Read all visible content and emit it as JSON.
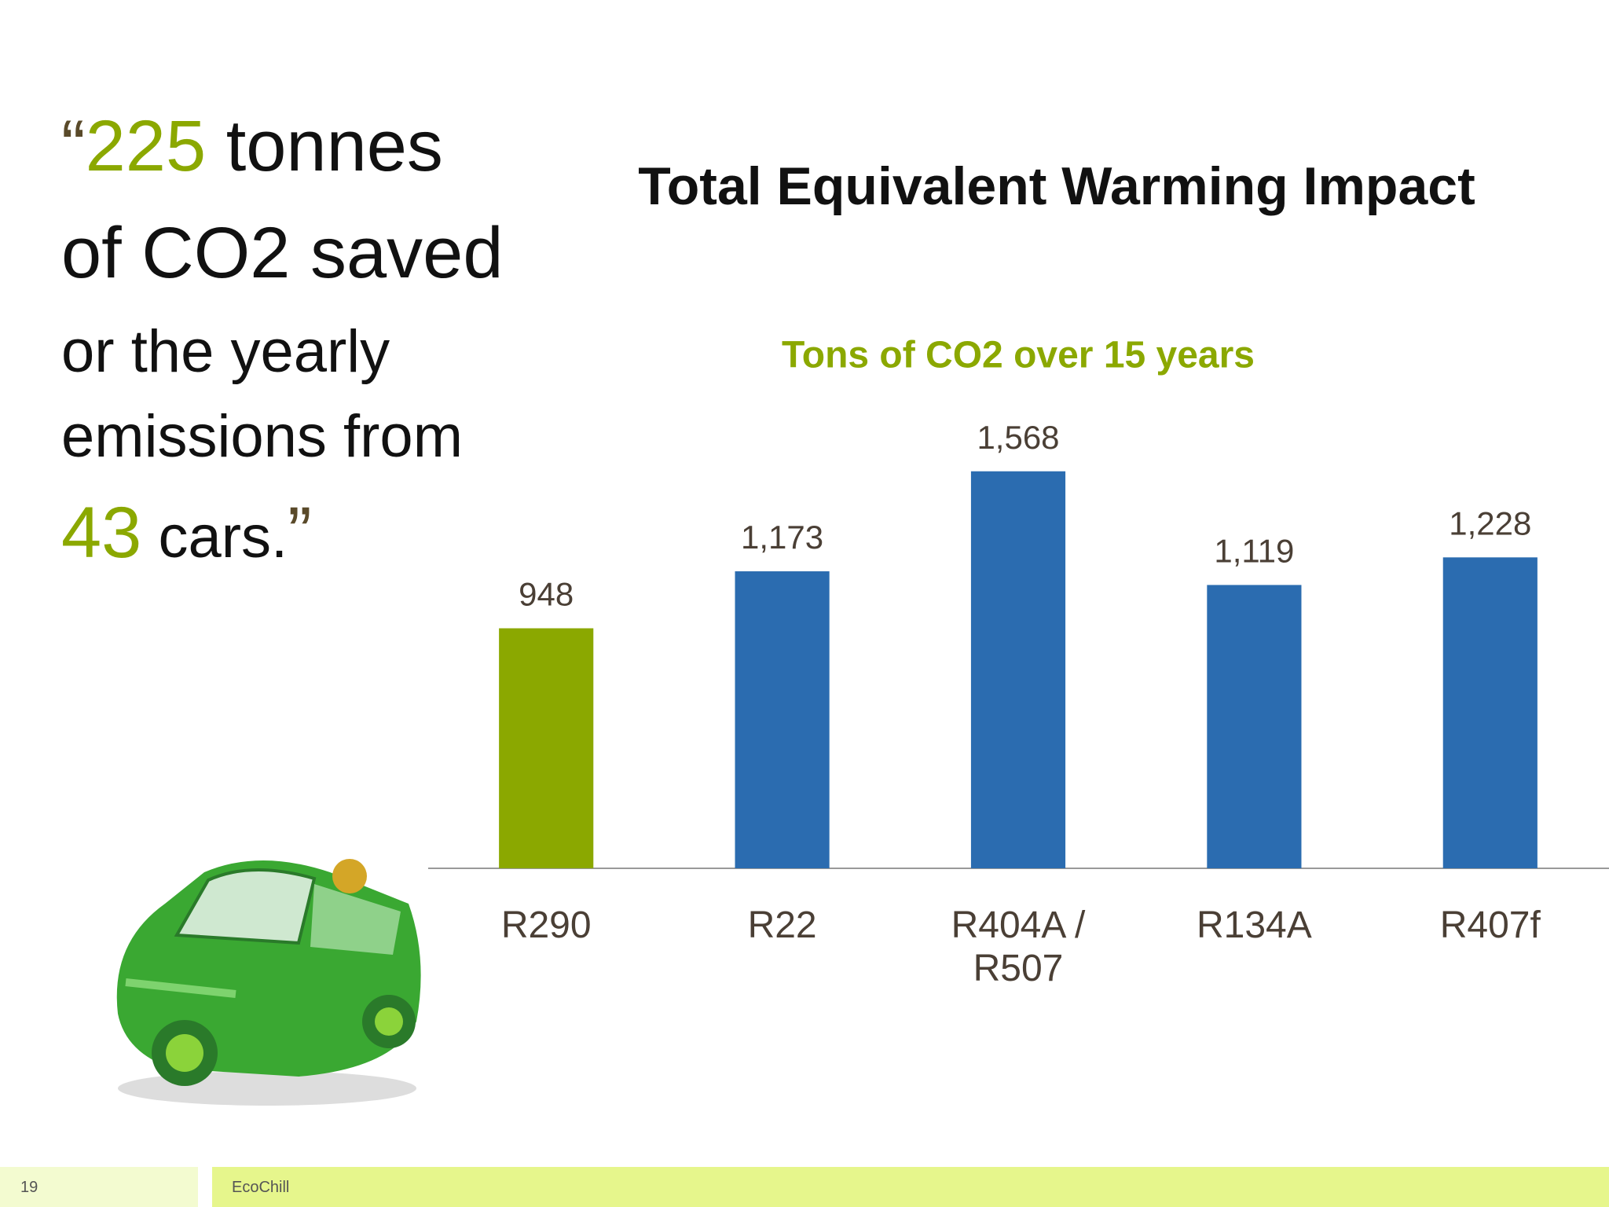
{
  "quote": {
    "lines": [
      [
        "“",
        "225",
        " tonnes"
      ],
      [
        "of CO2 saved"
      ],
      [
        "or the yearly"
      ],
      [
        "emissions from"
      ],
      [
        "43",
        " cars.",
        "”"
      ]
    ]
  },
  "chart_data": {
    "type": "bar",
    "title": "Total Equivalent Warming Impact",
    "subtitle": "Tons of CO2 over 15 years",
    "categories": [
      "R290",
      "R22",
      "R404A / R507",
      "R134A",
      "R407f"
    ],
    "values": [
      948,
      1173,
      1568,
      1119,
      1228
    ],
    "value_labels": [
      "948",
      "1,173",
      "1,568",
      "1,119",
      "1,228"
    ],
    "colors": [
      "#8ba800",
      "#2b6cb0",
      "#2b6cb0",
      "#2b6cb0",
      "#2b6cb0"
    ],
    "ylim": [
      0,
      1800
    ]
  },
  "footer": {
    "page": "19",
    "brand": "EcoChill"
  }
}
